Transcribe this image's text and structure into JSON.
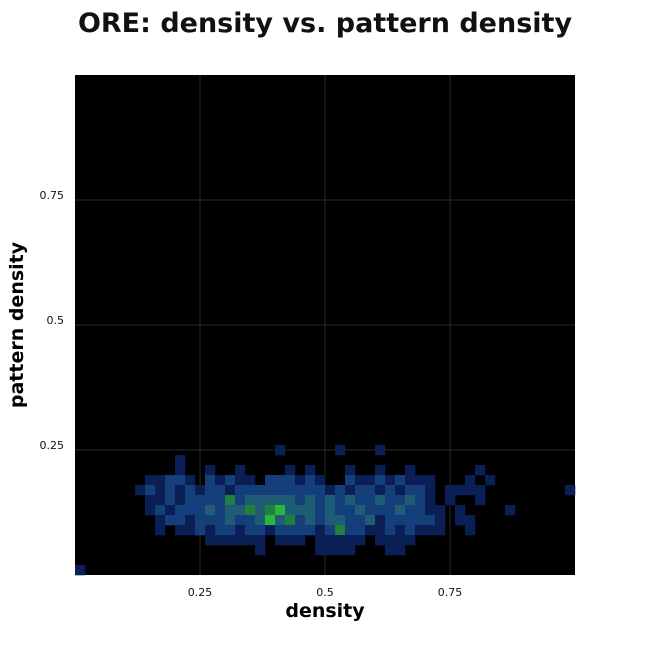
{
  "chart_data": {
    "type": "heatmap",
    "title": "ORE: density vs. pattern density",
    "xlabel": "density",
    "ylabel": "pattern density",
    "xlim": [
      0,
      1
    ],
    "ylim": [
      0,
      1
    ],
    "grid": true,
    "background_color": "#000000",
    "grid_color": "#2a2a2a",
    "colormap": [
      "#0a1f55",
      "#153f7a",
      "#1f5d74",
      "#22803f",
      "#2bb83a"
    ],
    "bin_size": 0.02,
    "x_ticks": [
      0.25,
      0.5,
      0.75
    ],
    "x_tick_labels": [
      "0.25",
      "0.5",
      "0.75"
    ],
    "y_ticks": [
      0.25,
      0.5,
      0.75
    ],
    "y_tick_labels": [
      "0.25",
      "0.5",
      "0.75"
    ],
    "bins": [
      [
        0.01,
        0.01,
        1
      ],
      [
        0.21,
        0.23,
        1
      ],
      [
        0.41,
        0.25,
        1
      ],
      [
        0.53,
        0.25,
        1
      ],
      [
        0.61,
        0.25,
        1
      ],
      [
        0.21,
        0.21,
        1
      ],
      [
        0.27,
        0.21,
        1
      ],
      [
        0.33,
        0.21,
        1
      ],
      [
        0.43,
        0.21,
        1
      ],
      [
        0.47,
        0.21,
        1
      ],
      [
        0.55,
        0.21,
        1
      ],
      [
        0.61,
        0.21,
        1
      ],
      [
        0.67,
        0.21,
        1
      ],
      [
        0.81,
        0.21,
        1
      ],
      [
        0.15,
        0.19,
        1
      ],
      [
        0.17,
        0.19,
        1
      ],
      [
        0.19,
        0.19,
        2
      ],
      [
        0.21,
        0.19,
        2
      ],
      [
        0.23,
        0.19,
        1
      ],
      [
        0.27,
        0.19,
        2
      ],
      [
        0.29,
        0.19,
        1
      ],
      [
        0.31,
        0.19,
        2
      ],
      [
        0.33,
        0.19,
        1
      ],
      [
        0.35,
        0.19,
        1
      ],
      [
        0.39,
        0.19,
        2
      ],
      [
        0.41,
        0.19,
        2
      ],
      [
        0.43,
        0.19,
        2
      ],
      [
        0.45,
        0.19,
        1
      ],
      [
        0.47,
        0.19,
        2
      ],
      [
        0.49,
        0.19,
        1
      ],
      [
        0.55,
        0.19,
        2
      ],
      [
        0.57,
        0.19,
        1
      ],
      [
        0.59,
        0.19,
        1
      ],
      [
        0.61,
        0.19,
        2
      ],
      [
        0.63,
        0.19,
        1
      ],
      [
        0.65,
        0.19,
        2
      ],
      [
        0.67,
        0.19,
        1
      ],
      [
        0.69,
        0.19,
        1
      ],
      [
        0.71,
        0.19,
        1
      ],
      [
        0.79,
        0.19,
        1
      ],
      [
        0.83,
        0.19,
        1
      ],
      [
        0.13,
        0.17,
        1
      ],
      [
        0.15,
        0.17,
        2
      ],
      [
        0.17,
        0.17,
        1
      ],
      [
        0.19,
        0.17,
        2
      ],
      [
        0.21,
        0.17,
        1
      ],
      [
        0.23,
        0.17,
        2
      ],
      [
        0.25,
        0.17,
        1
      ],
      [
        0.27,
        0.17,
        2
      ],
      [
        0.29,
        0.17,
        2
      ],
      [
        0.31,
        0.17,
        1
      ],
      [
        0.33,
        0.17,
        2
      ],
      [
        0.35,
        0.17,
        2
      ],
      [
        0.37,
        0.17,
        2
      ],
      [
        0.39,
        0.17,
        2
      ],
      [
        0.41,
        0.17,
        2
      ],
      [
        0.43,
        0.17,
        2
      ],
      [
        0.45,
        0.17,
        2
      ],
      [
        0.47,
        0.17,
        2
      ],
      [
        0.49,
        0.17,
        2
      ],
      [
        0.51,
        0.17,
        1
      ],
      [
        0.53,
        0.17,
        2
      ],
      [
        0.55,
        0.17,
        1
      ],
      [
        0.57,
        0.17,
        2
      ],
      [
        0.59,
        0.17,
        2
      ],
      [
        0.61,
        0.17,
        1
      ],
      [
        0.63,
        0.17,
        2
      ],
      [
        0.65,
        0.17,
        1
      ],
      [
        0.67,
        0.17,
        2
      ],
      [
        0.69,
        0.17,
        2
      ],
      [
        0.71,
        0.17,
        1
      ],
      [
        0.75,
        0.17,
        1
      ],
      [
        0.77,
        0.17,
        1
      ],
      [
        0.79,
        0.17,
        1
      ],
      [
        0.81,
        0.17,
        1
      ],
      [
        0.99,
        0.17,
        1
      ],
      [
        0.15,
        0.15,
        1
      ],
      [
        0.17,
        0.15,
        1
      ],
      [
        0.19,
        0.15,
        2
      ],
      [
        0.21,
        0.15,
        1
      ],
      [
        0.23,
        0.15,
        2
      ],
      [
        0.25,
        0.15,
        2
      ],
      [
        0.27,
        0.15,
        2
      ],
      [
        0.29,
        0.15,
        2
      ],
      [
        0.31,
        0.15,
        4
      ],
      [
        0.33,
        0.15,
        2
      ],
      [
        0.35,
        0.15,
        3
      ],
      [
        0.37,
        0.15,
        3
      ],
      [
        0.39,
        0.15,
        3
      ],
      [
        0.41,
        0.15,
        3
      ],
      [
        0.43,
        0.15,
        3
      ],
      [
        0.45,
        0.15,
        2
      ],
      [
        0.47,
        0.15,
        3
      ],
      [
        0.49,
        0.15,
        2
      ],
      [
        0.51,
        0.15,
        3
      ],
      [
        0.53,
        0.15,
        2
      ],
      [
        0.55,
        0.15,
        3
      ],
      [
        0.57,
        0.15,
        2
      ],
      [
        0.59,
        0.15,
        2
      ],
      [
        0.61,
        0.15,
        3
      ],
      [
        0.63,
        0.15,
        2
      ],
      [
        0.65,
        0.15,
        2
      ],
      [
        0.67,
        0.15,
        3
      ],
      [
        0.69,
        0.15,
        2
      ],
      [
        0.71,
        0.15,
        1
      ],
      [
        0.75,
        0.15,
        1
      ],
      [
        0.81,
        0.15,
        1
      ],
      [
        0.15,
        0.13,
        1
      ],
      [
        0.17,
        0.13,
        2
      ],
      [
        0.19,
        0.13,
        1
      ],
      [
        0.21,
        0.13,
        2
      ],
      [
        0.23,
        0.13,
        2
      ],
      [
        0.25,
        0.13,
        2
      ],
      [
        0.27,
        0.13,
        3
      ],
      [
        0.29,
        0.13,
        2
      ],
      [
        0.31,
        0.13,
        3
      ],
      [
        0.33,
        0.13,
        3
      ],
      [
        0.35,
        0.13,
        4
      ],
      [
        0.37,
        0.13,
        3
      ],
      [
        0.39,
        0.13,
        4
      ],
      [
        0.41,
        0.13,
        5
      ],
      [
        0.43,
        0.13,
        3
      ],
      [
        0.45,
        0.13,
        3
      ],
      [
        0.47,
        0.13,
        3
      ],
      [
        0.49,
        0.13,
        2
      ],
      [
        0.51,
        0.13,
        3
      ],
      [
        0.53,
        0.13,
        2
      ],
      [
        0.55,
        0.13,
        2
      ],
      [
        0.57,
        0.13,
        3
      ],
      [
        0.59,
        0.13,
        2
      ],
      [
        0.61,
        0.13,
        2
      ],
      [
        0.63,
        0.13,
        2
      ],
      [
        0.65,
        0.13,
        3
      ],
      [
        0.67,
        0.13,
        2
      ],
      [
        0.69,
        0.13,
        2
      ],
      [
        0.71,
        0.13,
        1
      ],
      [
        0.73,
        0.13,
        1
      ],
      [
        0.77,
        0.13,
        1
      ],
      [
        0.87,
        0.13,
        1
      ],
      [
        0.17,
        0.11,
        1
      ],
      [
        0.19,
        0.11,
        2
      ],
      [
        0.21,
        0.11,
        2
      ],
      [
        0.23,
        0.11,
        1
      ],
      [
        0.25,
        0.11,
        2
      ],
      [
        0.27,
        0.11,
        2
      ],
      [
        0.29,
        0.11,
        2
      ],
      [
        0.31,
        0.11,
        3
      ],
      [
        0.33,
        0.11,
        2
      ],
      [
        0.35,
        0.11,
        2
      ],
      [
        0.37,
        0.11,
        3
      ],
      [
        0.39,
        0.11,
        5
      ],
      [
        0.41,
        0.11,
        3
      ],
      [
        0.43,
        0.11,
        4
      ],
      [
        0.45,
        0.11,
        2
      ],
      [
        0.47,
        0.11,
        3
      ],
      [
        0.49,
        0.11,
        2
      ],
      [
        0.51,
        0.11,
        3
      ],
      [
        0.53,
        0.11,
        3
      ],
      [
        0.55,
        0.11,
        2
      ],
      [
        0.57,
        0.11,
        2
      ],
      [
        0.59,
        0.11,
        3
      ],
      [
        0.61,
        0.11,
        1
      ],
      [
        0.63,
        0.11,
        2
      ],
      [
        0.65,
        0.11,
        2
      ],
      [
        0.67,
        0.11,
        2
      ],
      [
        0.69,
        0.11,
        2
      ],
      [
        0.71,
        0.11,
        2
      ],
      [
        0.73,
        0.11,
        1
      ],
      [
        0.77,
        0.11,
        1
      ],
      [
        0.79,
        0.11,
        1
      ],
      [
        0.17,
        0.09,
        1
      ],
      [
        0.21,
        0.09,
        1
      ],
      [
        0.23,
        0.09,
        1
      ],
      [
        0.25,
        0.09,
        2
      ],
      [
        0.27,
        0.09,
        1
      ],
      [
        0.29,
        0.09,
        2
      ],
      [
        0.31,
        0.09,
        2
      ],
      [
        0.33,
        0.09,
        1
      ],
      [
        0.35,
        0.09,
        2
      ],
      [
        0.37,
        0.09,
        2
      ],
      [
        0.39,
        0.09,
        1
      ],
      [
        0.41,
        0.09,
        2
      ],
      [
        0.43,
        0.09,
        2
      ],
      [
        0.45,
        0.09,
        2
      ],
      [
        0.47,
        0.09,
        2
      ],
      [
        0.49,
        0.09,
        1
      ],
      [
        0.51,
        0.09,
        2
      ],
      [
        0.53,
        0.09,
        4
      ],
      [
        0.55,
        0.09,
        2
      ],
      [
        0.57,
        0.09,
        2
      ],
      [
        0.59,
        0.09,
        1
      ],
      [
        0.61,
        0.09,
        1
      ],
      [
        0.63,
        0.09,
        2
      ],
      [
        0.65,
        0.09,
        1
      ],
      [
        0.67,
        0.09,
        2
      ],
      [
        0.69,
        0.09,
        1
      ],
      [
        0.71,
        0.09,
        1
      ],
      [
        0.73,
        0.09,
        1
      ],
      [
        0.79,
        0.09,
        1
      ],
      [
        0.27,
        0.07,
        1
      ],
      [
        0.29,
        0.07,
        1
      ],
      [
        0.31,
        0.07,
        1
      ],
      [
        0.33,
        0.07,
        1
      ],
      [
        0.35,
        0.07,
        1
      ],
      [
        0.37,
        0.07,
        1
      ],
      [
        0.41,
        0.07,
        1
      ],
      [
        0.43,
        0.07,
        1
      ],
      [
        0.45,
        0.07,
        1
      ],
      [
        0.49,
        0.07,
        1
      ],
      [
        0.51,
        0.07,
        1
      ],
      [
        0.53,
        0.07,
        1
      ],
      [
        0.55,
        0.07,
        1
      ],
      [
        0.57,
        0.07,
        1
      ],
      [
        0.61,
        0.07,
        1
      ],
      [
        0.63,
        0.07,
        1
      ],
      [
        0.65,
        0.07,
        1
      ],
      [
        0.67,
        0.07,
        1
      ],
      [
        0.37,
        0.05,
        1
      ],
      [
        0.49,
        0.05,
        1
      ],
      [
        0.51,
        0.05,
        1
      ],
      [
        0.53,
        0.05,
        1
      ],
      [
        0.55,
        0.05,
        1
      ],
      [
        0.63,
        0.05,
        1
      ],
      [
        0.65,
        0.05,
        1
      ]
    ]
  }
}
